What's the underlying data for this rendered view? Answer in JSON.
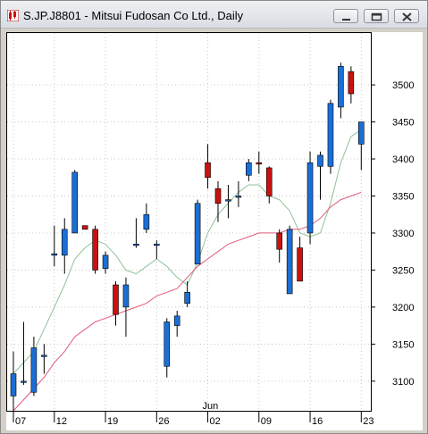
{
  "window": {
    "title": "S.JP.J8801 - Mitsui Fudosan Co Ltd., Daily",
    "controls": [
      "minimize",
      "restore",
      "close"
    ]
  },
  "colors": {
    "up": "#1a6fd6",
    "down": "#cc1010",
    "ma_short": "#8fc19a",
    "ma_long": "#e05a78",
    "grid": "#c8c8c8"
  },
  "chart_data": {
    "type": "candlestick",
    "title": "S.JP.J8801 - Mitsui Fudosan Co Ltd., Daily",
    "ylim": [
      3060,
      3570
    ],
    "y_ticks": [
      3100,
      3150,
      3200,
      3250,
      3300,
      3350,
      3400,
      3450,
      3500
    ],
    "x_tick_labels": [
      "07",
      "12",
      "19",
      "26",
      "02",
      "09",
      "16",
      "23"
    ],
    "x_tick_index": [
      0,
      4,
      9,
      14,
      19,
      24,
      29,
      34
    ],
    "month_label": "Jun",
    "month_label_index": 19,
    "grid": true,
    "candles": [
      {
        "o": 3080,
        "h": 3140,
        "l": 3060,
        "c": 3110
      },
      {
        "o": 3100,
        "h": 3180,
        "l": 3095,
        "c": 3100
      },
      {
        "o": 3085,
        "h": 3160,
        "l": 3080,
        "c": 3145
      },
      {
        "o": 3135,
        "h": 3150,
        "l": 3110,
        "c": 3135
      },
      {
        "o": 3270,
        "h": 3310,
        "l": 3255,
        "c": 3272
      },
      {
        "o": 3270,
        "h": 3320,
        "l": 3245,
        "c": 3305
      },
      {
        "o": 3300,
        "h": 3385,
        "l": 3300,
        "c": 3382
      },
      {
        "o": 3310,
        "h": 3310,
        "l": 3305,
        "c": 3305
      },
      {
        "o": 3305,
        "h": 3310,
        "l": 3245,
        "c": 3250
      },
      {
        "o": 3252,
        "h": 3275,
        "l": 3245,
        "c": 3270
      },
      {
        "o": 3230,
        "h": 3235,
        "l": 3175,
        "c": 3190
      },
      {
        "o": 3200,
        "h": 3240,
        "l": 3160,
        "c": 3230
      },
      {
        "o": 3285,
        "h": 3320,
        "l": 3280,
        "c": 3285
      },
      {
        "o": 3305,
        "h": 3340,
        "l": 3300,
        "c": 3325
      },
      {
        "o": 3285,
        "h": 3290,
        "l": 3265,
        "c": 3285
      },
      {
        "o": 3120,
        "h": 3185,
        "l": 3105,
        "c": 3180
      },
      {
        "o": 3175,
        "h": 3195,
        "l": 3160,
        "c": 3188
      },
      {
        "o": 3205,
        "h": 3235,
        "l": 3200,
        "c": 3220
      },
      {
        "o": 3258,
        "h": 3345,
        "l": 3258,
        "c": 3340
      },
      {
        "o": 3395,
        "h": 3420,
        "l": 3360,
        "c": 3375
      },
      {
        "o": 3360,
        "h": 3370,
        "l": 3315,
        "c": 3340
      },
      {
        "o": 3345,
        "h": 3365,
        "l": 3320,
        "c": 3345
      },
      {
        "o": 3350,
        "h": 3370,
        "l": 3335,
        "c": 3350
      },
      {
        "o": 3378,
        "h": 3400,
        "l": 3370,
        "c": 3395
      },
      {
        "o": 3395,
        "h": 3410,
        "l": 3380,
        "c": 3393
      },
      {
        "o": 3388,
        "h": 3390,
        "l": 3340,
        "c": 3350
      },
      {
        "o": 3300,
        "h": 3305,
        "l": 3260,
        "c": 3278
      },
      {
        "o": 3218,
        "h": 3310,
        "l": 3218,
        "c": 3305
      },
      {
        "o": 3280,
        "h": 3295,
        "l": 3235,
        "c": 3235
      },
      {
        "o": 3300,
        "h": 3410,
        "l": 3285,
        "c": 3395
      },
      {
        "o": 3390,
        "h": 3410,
        "l": 3345,
        "c": 3405
      },
      {
        "o": 3390,
        "h": 3480,
        "l": 3380,
        "c": 3475
      },
      {
        "o": 3470,
        "h": 3530,
        "l": 3455,
        "c": 3525
      },
      {
        "o": 3518,
        "h": 3525,
        "l": 3475,
        "c": 3488
      },
      {
        "o": 3420,
        "h": 3450,
        "l": 3385,
        "c": 3450
      }
    ],
    "ma_short": [
      3110,
      3125,
      3140,
      3170,
      3200,
      3230,
      3265,
      3280,
      3290,
      3285,
      3270,
      3250,
      3245,
      3255,
      3265,
      3255,
      3240,
      3230,
      3260,
      3300,
      3325,
      3340,
      3355,
      3365,
      3365,
      3350,
      3345,
      3330,
      3300,
      3295,
      3300,
      3340,
      3395,
      3430,
      3440
    ],
    "ma_long": [
      3060,
      3075,
      3090,
      3105,
      3125,
      3140,
      3160,
      3170,
      3180,
      3185,
      3190,
      3195,
      3200,
      3205,
      3215,
      3220,
      3225,
      3240,
      3255,
      3265,
      3275,
      3285,
      3290,
      3295,
      3300,
      3300,
      3300,
      3305,
      3305,
      3310,
      3320,
      3335,
      3345,
      3350,
      3355
    ]
  }
}
